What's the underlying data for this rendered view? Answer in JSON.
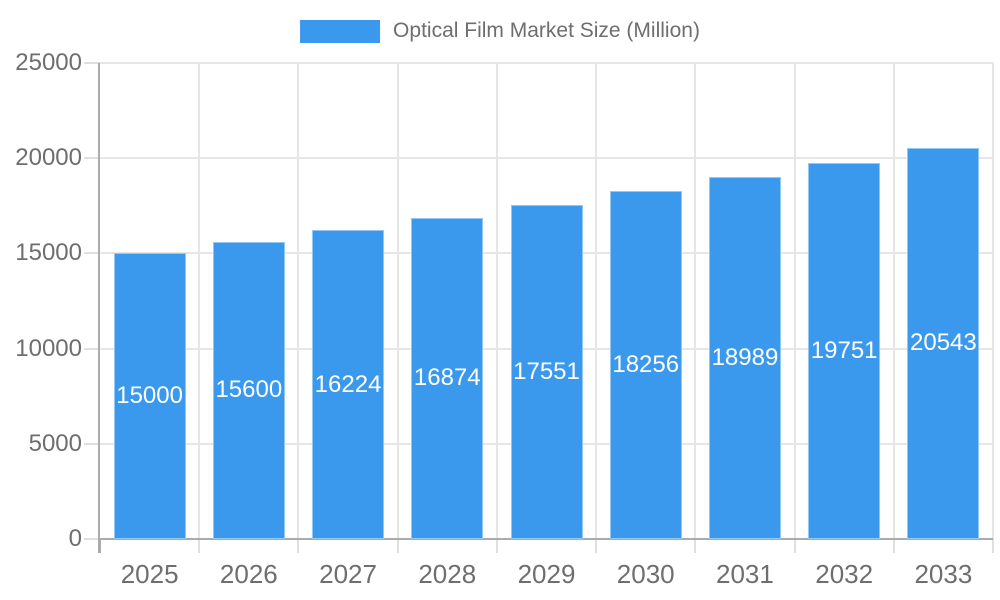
{
  "legend": {
    "label": "Optical Film Market Size (Million)"
  },
  "chart_data": {
    "type": "bar",
    "title": "Optical Film Market Size (Million)",
    "series_name": "Optical Film Market Size (Million)",
    "categories": [
      "2025",
      "2026",
      "2027",
      "2028",
      "2029",
      "2030",
      "2031",
      "2032",
      "2033"
    ],
    "values": [
      15000,
      15600,
      16224,
      16874,
      17551,
      18256,
      18989,
      19751,
      20543
    ],
    "xlabel": "",
    "ylabel": "",
    "ylim": [
      0,
      25000
    ],
    "yticks": [
      0,
      5000,
      10000,
      15000,
      20000,
      25000
    ],
    "grid": true,
    "legend_position": "top-center",
    "data_labels_position": "inside-center"
  },
  "colors": {
    "bar": "#3B99ED",
    "grid": "#E6E6E6",
    "tick": "#DFDFDF",
    "axis": "#ABABAB",
    "text": "#6E6E6E",
    "bar_label": "#FFFFFF",
    "background": "#FFFFFF"
  }
}
